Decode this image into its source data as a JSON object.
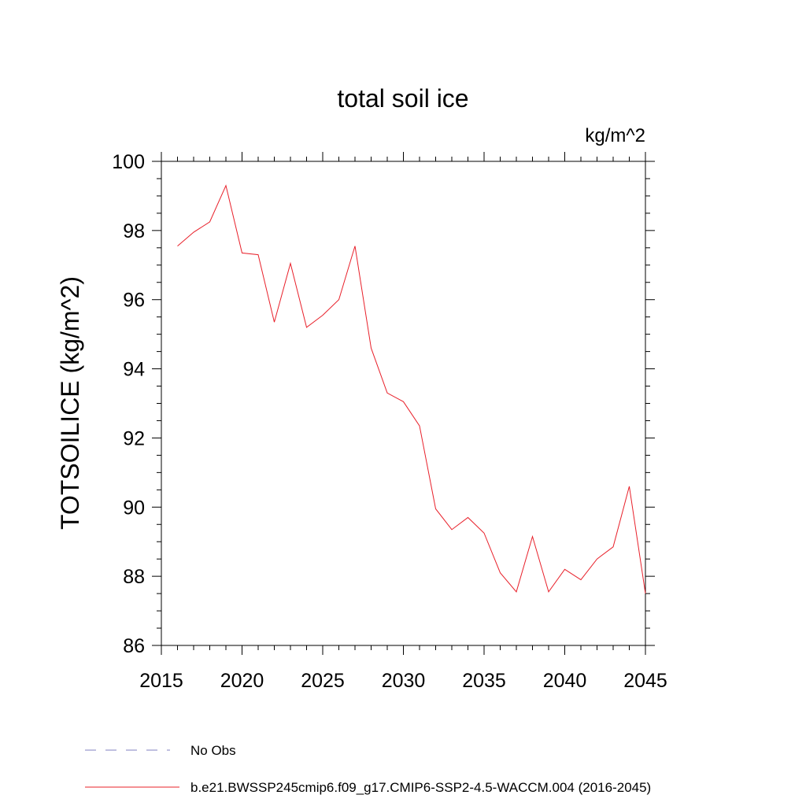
{
  "chart_data": {
    "type": "line",
    "title": "total soil ice",
    "units_label": "kg/m^2",
    "ylabel": "TOTSOILICE  (kg/m^2)",
    "xlabel": "",
    "xlim": [
      2015,
      2045
    ],
    "ylim": [
      86,
      100
    ],
    "xticks": [
      2015,
      2020,
      2025,
      2030,
      2035,
      2040,
      2045
    ],
    "yticks": [
      86,
      88,
      90,
      92,
      94,
      96,
      98,
      100
    ],
    "grid": false,
    "legend_position": "bottom-left",
    "series": [
      {
        "name": "No Obs",
        "color": "#8080c0",
        "style": "dashed",
        "x": [],
        "y": []
      },
      {
        "name": "b.e21.BWSSP245cmip6.f09_g17.CMIP6-SSP2-4.5-WACCM.004 (2016-2045)",
        "color": "#e8202a",
        "style": "solid",
        "x": [
          2016,
          2017,
          2018,
          2019,
          2020,
          2021,
          2022,
          2023,
          2024,
          2025,
          2026,
          2027,
          2028,
          2029,
          2030,
          2031,
          2032,
          2033,
          2034,
          2035,
          2036,
          2037,
          2038,
          2039,
          2040,
          2041,
          2042,
          2043,
          2044,
          2045
        ],
        "y": [
          97.55,
          97.95,
          98.25,
          99.3,
          97.35,
          97.3,
          95.35,
          97.05,
          95.2,
          95.55,
          96.0,
          97.55,
          94.6,
          93.3,
          93.05,
          92.35,
          89.95,
          89.35,
          89.7,
          89.25,
          88.1,
          87.55,
          89.15,
          87.55,
          88.2,
          87.9,
          88.5,
          88.85,
          90.6,
          87.5
        ]
      }
    ]
  }
}
